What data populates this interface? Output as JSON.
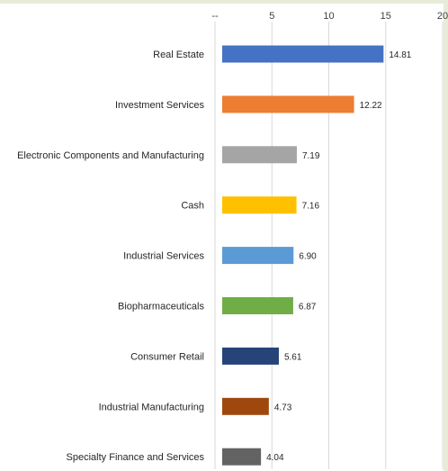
{
  "chart_data": {
    "type": "bar",
    "orientation": "horizontal",
    "x_ticks": [
      "--",
      "5",
      "10",
      "15",
      "20"
    ],
    "xlim": [
      0,
      20
    ],
    "grid": true,
    "categories": [
      "Real Estate",
      "Investment Services",
      "Electronic Components and Manufacturing",
      "Cash",
      "Industrial Services",
      "Biopharmaceuticals",
      "Consumer Retail",
      "Industrial Manufacturing",
      "Specialty Finance and Services"
    ],
    "values": [
      14.81,
      12.22,
      7.19,
      7.16,
      6.9,
      6.87,
      5.61,
      4.73,
      4.04
    ],
    "value_labels": [
      "14.81",
      "12.22",
      "7.19",
      "7.16",
      "6.90",
      "6.87",
      "5.61",
      "4.73",
      "4.04"
    ],
    "colors": [
      "#4472c4",
      "#ed7d31",
      "#a5a5a5",
      "#ffc000",
      "#5b9bd5",
      "#70ad47",
      "#264478",
      "#9e480e",
      "#636363"
    ]
  }
}
